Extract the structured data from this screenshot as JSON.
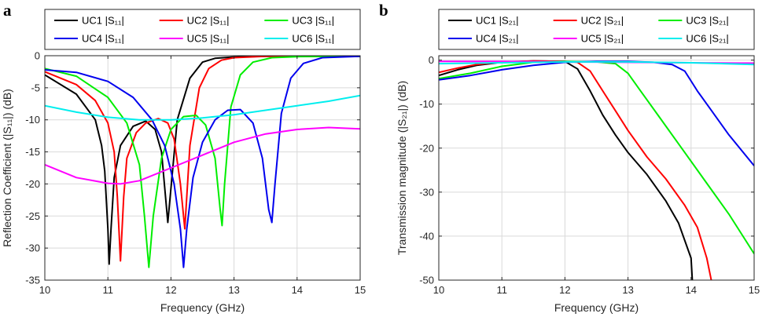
{
  "chart_data": [
    {
      "panel": "a",
      "type": "line",
      "xlabel": "Frequency (GHz)",
      "ylabel": "Reflection Coefficient (|S₁₁|) (dB)",
      "xlim": [
        10,
        15
      ],
      "ylim": [
        -35,
        0
      ],
      "xticks": [
        10,
        11,
        12,
        13,
        14,
        15
      ],
      "yticks": [
        0,
        -5,
        -10,
        -15,
        -20,
        -25,
        -30,
        -35
      ],
      "grid": true,
      "legend": {
        "location": "top",
        "columns": 3
      },
      "series": [
        {
          "name": "UC1 |S₁₁|",
          "color": "#000000",
          "x": [
            10,
            10.5,
            10.8,
            10.9,
            10.95,
            11.0,
            11.02,
            11.05,
            11.1,
            11.2,
            11.4,
            11.6,
            11.75,
            11.85,
            11.95,
            12.1,
            12.3,
            12.5,
            12.7,
            13,
            13.5,
            14,
            15
          ],
          "y": [
            -3,
            -6,
            -10,
            -14,
            -18,
            -27,
            -32.5,
            -27,
            -19,
            -14,
            -11,
            -10.2,
            -11.5,
            -15,
            -26,
            -10,
            -3.5,
            -1,
            -0.4,
            -0.2,
            -0.1,
            -0.1,
            -0.1
          ]
        },
        {
          "name": "UC2 |S₁₁|",
          "color": "#ff0000",
          "x": [
            10,
            10.5,
            10.8,
            11.0,
            11.1,
            11.15,
            11.2,
            11.25,
            11.3,
            11.45,
            11.6,
            11.8,
            11.95,
            12.05,
            12.15,
            12.22,
            12.3,
            12.45,
            12.6,
            12.8,
            13,
            13.5,
            15
          ],
          "y": [
            -2.5,
            -4.5,
            -7,
            -10.5,
            -15,
            -22,
            -32,
            -22,
            -16,
            -12,
            -10.5,
            -9.8,
            -10.5,
            -13,
            -20,
            -27,
            -14,
            -5,
            -2,
            -0.7,
            -0.3,
            -0.1,
            -0.1
          ]
        },
        {
          "name": "UC3 |S₁₁|",
          "color": "#00ee00",
          "x": [
            10,
            10.5,
            11.0,
            11.3,
            11.5,
            11.58,
            11.65,
            11.72,
            11.85,
            12.0,
            12.2,
            12.4,
            12.55,
            12.7,
            12.78,
            12.81,
            12.85,
            12.95,
            13.1,
            13.3,
            13.6,
            14,
            15
          ],
          "y": [
            -2,
            -3.2,
            -6.5,
            -10.5,
            -17,
            -25,
            -33,
            -25,
            -16,
            -11.5,
            -9.5,
            -9.3,
            -10.8,
            -16,
            -24,
            -26.5,
            -20,
            -8,
            -3,
            -1,
            -0.3,
            -0.15,
            -0.1
          ]
        },
        {
          "name": "UC4 |S₁₁|",
          "color": "#0000ee",
          "x": [
            10,
            10.5,
            11.0,
            11.4,
            11.7,
            11.9,
            12.05,
            12.15,
            12.2,
            12.25,
            12.35,
            12.5,
            12.7,
            12.9,
            13.1,
            13.3,
            13.45,
            13.55,
            13.6,
            13.65,
            13.75,
            13.9,
            14.1,
            14.4,
            15
          ],
          "y": [
            -2.2,
            -2.6,
            -4,
            -6.5,
            -10,
            -14,
            -20,
            -27,
            -33,
            -27,
            -19,
            -13.5,
            -10,
            -8.5,
            -8.4,
            -10.5,
            -16,
            -24,
            -26,
            -20,
            -9,
            -3.5,
            -1.2,
            -0.3,
            -0.1
          ]
        },
        {
          "name": "UC5 |S₁₁|",
          "color": "#ff00ff",
          "x": [
            10,
            10.5,
            11.0,
            11.2,
            11.5,
            12,
            12.5,
            13,
            13.5,
            14,
            14.5,
            15
          ],
          "y": [
            -17,
            -19,
            -19.9,
            -20,
            -19.5,
            -17.5,
            -15.5,
            -13.5,
            -12.2,
            -11.5,
            -11.2,
            -11.4
          ]
        },
        {
          "name": "UC6 |S₁₁|",
          "color": "#00eeee",
          "x": [
            10,
            10.5,
            11.0,
            11.5,
            12,
            12.5,
            13,
            13.5,
            14,
            14.5,
            15
          ],
          "y": [
            -7.8,
            -8.8,
            -9.6,
            -10,
            -10,
            -9.7,
            -9.2,
            -8.5,
            -7.8,
            -7.1,
            -6.2
          ]
        }
      ]
    },
    {
      "panel": "b",
      "type": "line",
      "xlabel": "Frequency (GHz)",
      "ylabel": "Transmission magnitude (|S₂₁|) (dB)",
      "xlim": [
        10,
        15
      ],
      "ylim": [
        -50,
        1
      ],
      "xticks": [
        10,
        11,
        12,
        13,
        14,
        15
      ],
      "yticks": [
        0,
        -10,
        -20,
        -30,
        -40,
        -50
      ],
      "grid": true,
      "legend": {
        "location": "top",
        "columns": 3
      },
      "series": [
        {
          "name": "UC1 |S₂₁|",
          "color": "#000000",
          "x": [
            10,
            10.3,
            10.6,
            11.0,
            11.5,
            12.0,
            12.2,
            12.4,
            12.6,
            12.8,
            13.0,
            13.3,
            13.6,
            13.8,
            14.0,
            14.02
          ],
          "y": [
            -3.5,
            -2.2,
            -1.2,
            -0.5,
            -0.2,
            -0.3,
            -2,
            -7,
            -12.5,
            -17,
            -21,
            -26,
            -32,
            -37,
            -45,
            -50
          ]
        },
        {
          "name": "UC2 |S₂₁|",
          "color": "#ff0000",
          "x": [
            10,
            10.3,
            10.6,
            11.0,
            11.5,
            12.0,
            12.2,
            12.4,
            12.6,
            12.8,
            13.0,
            13.3,
            13.6,
            13.9,
            14.1,
            14.25,
            14.32
          ],
          "y": [
            -2.8,
            -1.8,
            -1.0,
            -0.4,
            -0.2,
            -0.3,
            -0.5,
            -2.5,
            -7,
            -11.5,
            -16,
            -22,
            -27,
            -33,
            -38,
            -45,
            -50
          ]
        },
        {
          "name": "UC3 |S₂₁|",
          "color": "#00ee00",
          "x": [
            10,
            10.5,
            11.0,
            11.5,
            12.0,
            12.5,
            12.8,
            13.0,
            13.2,
            13.5,
            13.8,
            14.2,
            14.6,
            15
          ],
          "y": [
            -4.2,
            -3,
            -1.4,
            -0.5,
            -0.3,
            -0.4,
            -0.8,
            -3,
            -7,
            -13,
            -19,
            -27,
            -35,
            -44
          ]
        },
        {
          "name": "UC4 |S₂₁|",
          "color": "#0000ee",
          "x": [
            10,
            10.5,
            11.0,
            11.5,
            12.0,
            12.5,
            13.0,
            13.4,
            13.7,
            13.9,
            14.1,
            14.3,
            14.6,
            15
          ],
          "y": [
            -4.5,
            -3.5,
            -2.2,
            -1.2,
            -0.5,
            -0.3,
            -0.3,
            -0.5,
            -1,
            -2.5,
            -7,
            -11,
            -17,
            -24
          ]
        },
        {
          "name": "UC5 |S₂₁|",
          "color": "#ff00ff",
          "x": [
            10,
            11,
            12,
            13,
            14,
            15
          ],
          "y": [
            -0.3,
            -0.3,
            -0.4,
            -0.5,
            -0.6,
            -0.7
          ]
        },
        {
          "name": "UC6 |S₂₁|",
          "color": "#00eeee",
          "x": [
            10,
            11,
            12,
            13,
            14,
            15
          ],
          "y": [
            -0.8,
            -0.6,
            -0.4,
            -0.4,
            -0.6,
            -1.0
          ]
        }
      ]
    }
  ]
}
